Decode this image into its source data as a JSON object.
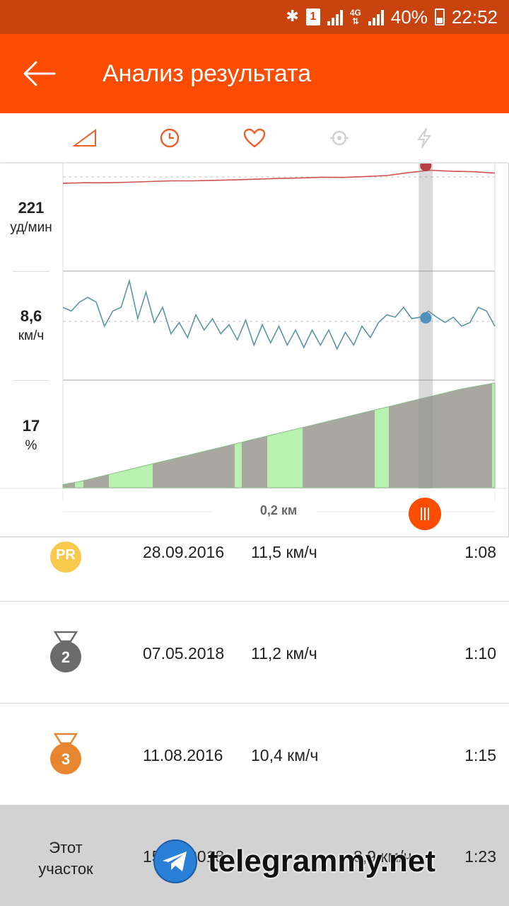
{
  "status_bar": {
    "battery_percent": "40%",
    "time": "22:52",
    "sim_slot": "1",
    "network": "4G",
    "icons": [
      "bluetooth-icon",
      "sim-icon",
      "signal-icon",
      "network-4g-icon",
      "signal-icon",
      "battery-icon"
    ]
  },
  "app_bar": {
    "title": "Анализ результата",
    "back_icon": "arrow-left-icon"
  },
  "tabs": [
    {
      "name": "elevation",
      "icon": "triangle-icon",
      "active": false
    },
    {
      "name": "time",
      "icon": "clock-icon",
      "active": true
    },
    {
      "name": "heart-rate",
      "icon": "heart-icon",
      "active": true
    },
    {
      "name": "cadence",
      "icon": "cadence-icon",
      "active": false
    },
    {
      "name": "power",
      "icon": "lightning-icon",
      "active": false
    }
  ],
  "colors": {
    "brand": "#fc4c02",
    "status_bar": "#c9430f",
    "heart_line": "#d05050",
    "speed_line": "#5b95a8",
    "grade_fill": "#a8a8a0",
    "grade_fill_green": "#b7f2b0",
    "hr_marker": "#c8101a",
    "speed_marker": "#2b8fd0",
    "pr_badge": "#f9c94e",
    "silver_badge": "#6b6b6b",
    "bronze_badge": "#e88630"
  },
  "chart": {
    "heart_rate": {
      "value": "221",
      "unit": "уд/мин"
    },
    "speed": {
      "value": "8,6",
      "unit": "км/ч"
    },
    "grade": {
      "value": "17",
      "unit": "%"
    },
    "distance_label": "0,2 км",
    "cursor_position_fraction": 0.84,
    "heart_rate_series": [
      0.18,
      0.2,
      0.2,
      0.22,
      0.25,
      0.28,
      0.28,
      0.3,
      0.32,
      0.35,
      0.38,
      0.4,
      0.43,
      0.42,
      0.46,
      0.5,
      0.62,
      0.72,
      0.68,
      0.66,
      0.6
    ],
    "speed_series": [
      0.55,
      0.5,
      0.62,
      0.68,
      0.62,
      0.3,
      0.5,
      0.55,
      0.9,
      0.4,
      0.75,
      0.35,
      0.55,
      0.2,
      0.35,
      0.15,
      0.45,
      0.25,
      0.4,
      0.2,
      0.32,
      0.12,
      0.38,
      0.05,
      0.32,
      0.08,
      0.3,
      0.05,
      0.25,
      0.02,
      0.25,
      0.05,
      0.25,
      0.0,
      0.22,
      0.05,
      0.3,
      0.15,
      0.35,
      0.45,
      0.42,
      0.55,
      0.4,
      0.42,
      0.5,
      0.42,
      0.35,
      0.42,
      0.3,
      0.35,
      0.55,
      0.5,
      0.3
    ],
    "grade_series": [
      0.03,
      0.06,
      0.1,
      0.14,
      0.18,
      0.22,
      0.26,
      0.3,
      0.34,
      0.38,
      0.42,
      0.46,
      0.5,
      0.54,
      0.58,
      0.62,
      0.66,
      0.7,
      0.74,
      0.78,
      0.82,
      0.86,
      0.9,
      0.94,
      0.97,
      1.0
    ]
  },
  "leaderboard": [
    {
      "badge_text": "PR",
      "badge": "pr-badge-icon",
      "date": "28.09.2016",
      "speed": "11,5 км/ч",
      "time": "1:08"
    },
    {
      "badge_text": "2",
      "badge": "silver-medal-icon",
      "date": "07.05.2018",
      "speed": "11,2 км/ч",
      "time": "1:10"
    },
    {
      "badge_text": "3",
      "badge": "bronze-medal-icon",
      "date": "11.08.2016",
      "speed": "10,4 км/ч",
      "time": "1:15"
    }
  ],
  "this_segment": {
    "label": "Этот участок",
    "date": "15.09.2018",
    "speed": "8,9 км/ч",
    "time": "1:23"
  },
  "watermark": {
    "text": "telegrammy.net",
    "icon": "telegram-icon"
  }
}
